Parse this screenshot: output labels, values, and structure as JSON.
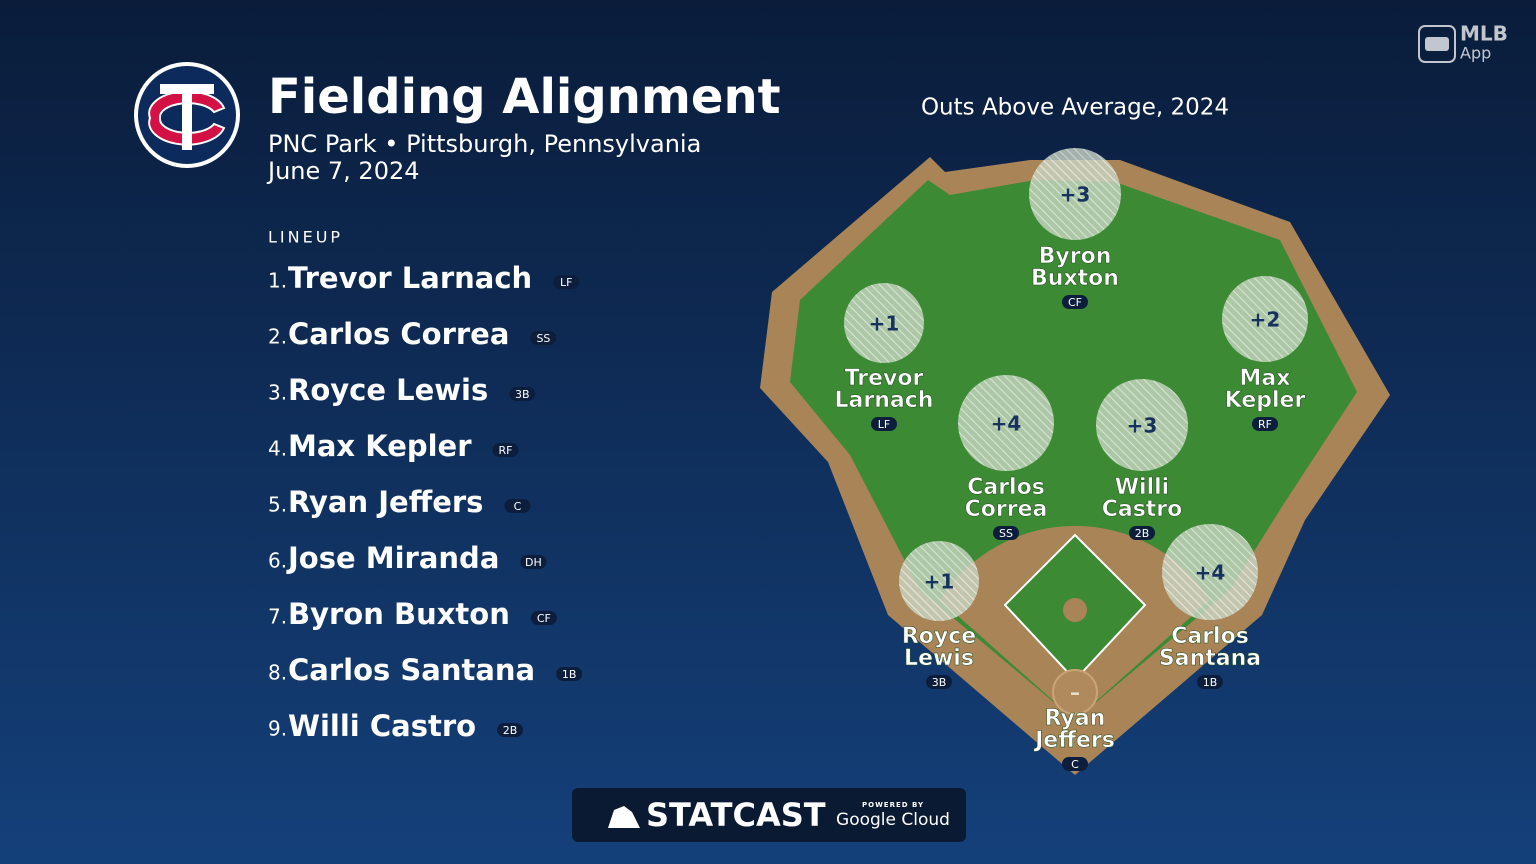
{
  "header": {
    "title": "Fielding Alignment",
    "venue": "PNC Park • Pittsburgh, Pennsylvania",
    "date": "June 7, 2024"
  },
  "brand": {
    "app_top": "MLB",
    "app_bottom": "App",
    "statcast": "STATCAST",
    "powered_by": "POWERED BY",
    "cloud": "Google Cloud"
  },
  "lineup": {
    "label": "LINEUP",
    "players": [
      {
        "number": "1.",
        "name": "Trevor Larnach",
        "position": "LF"
      },
      {
        "number": "2.",
        "name": "Carlos Correa",
        "position": "SS"
      },
      {
        "number": "3.",
        "name": "Royce Lewis",
        "position": "3B"
      },
      {
        "number": "4.",
        "name": "Max Kepler",
        "position": "RF"
      },
      {
        "number": "5.",
        "name": "Ryan Jeffers",
        "position": "C"
      },
      {
        "number": "6.",
        "name": "Jose Miranda",
        "position": "DH"
      },
      {
        "number": "7.",
        "name": "Byron Buxton",
        "position": "CF"
      },
      {
        "number": "8.",
        "name": "Carlos Santana",
        "position": "1B"
      },
      {
        "number": "9.",
        "name": "Willi Castro",
        "position": "2B"
      }
    ]
  },
  "field": {
    "title": "Outs Above Average, 2024",
    "fielders": [
      {
        "value": "+3",
        "name": [
          "Byron",
          "Buxton"
        ],
        "position": "CF"
      },
      {
        "value": "+1",
        "name": [
          "Trevor",
          "Larnach"
        ],
        "position": "LF"
      },
      {
        "value": "+2",
        "name": [
          "Max",
          "Kepler"
        ],
        "position": "RF"
      },
      {
        "value": "+4",
        "name": [
          "Carlos",
          "Correa"
        ],
        "position": "SS"
      },
      {
        "value": "+3",
        "name": [
          "Willi",
          "Castro"
        ],
        "position": "2B"
      },
      {
        "value": "+1",
        "name": [
          "Royce",
          "Lewis"
        ],
        "position": "3B"
      },
      {
        "value": "+4",
        "name": [
          "Carlos",
          "Santana"
        ],
        "position": "1B"
      },
      {
        "value": "–",
        "name": [
          "Ryan",
          "Jeffers"
        ],
        "position": "C"
      }
    ]
  }
}
